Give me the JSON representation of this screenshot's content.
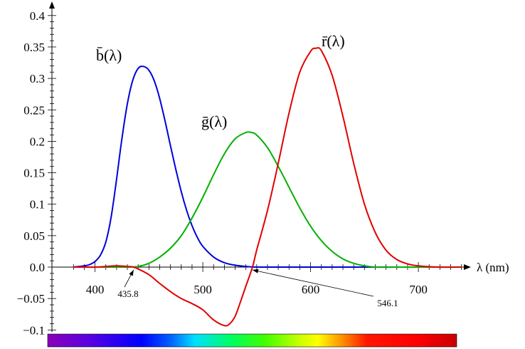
{
  "chart_data": {
    "type": "line",
    "title": "",
    "xlabel": "λ (nm)",
    "ylabel": "",
    "xlim": [
      360,
      750
    ],
    "ylim": [
      -0.1,
      0.4
    ],
    "grid": false,
    "x_ticks": [
      400,
      500,
      600,
      700
    ],
    "y_ticks": [
      0.4,
      0.35,
      0.3,
      0.25,
      0.2,
      0.15,
      0.1,
      0.05,
      0.0,
      -0.05,
      -0.1
    ],
    "x_tick_labels": [
      "400",
      "500",
      "600",
      "700"
    ],
    "y_tick_labels": [
      "0.4",
      "0.35",
      "0.3",
      "0.25",
      "0.2",
      "0.15",
      "0.1",
      "0.05",
      "0.0",
      "−0.05",
      "−0.1"
    ],
    "annotations": [
      {
        "text": "435.8",
        "x": 435.8,
        "y": 0
      },
      {
        "text": "546.1",
        "x": 546.1,
        "y": 0
      }
    ],
    "series": [
      {
        "name": "b̄(λ)",
        "color": "#0000dd",
        "x": [
          380,
          390,
          395,
          400,
          405,
          410,
          415,
          420,
          425,
          430,
          435,
          440,
          445,
          450,
          455,
          460,
          465,
          470,
          475,
          480,
          485,
          490,
          495,
          500,
          510,
          520,
          530,
          540,
          550,
          560,
          580,
          600,
          650,
          700,
          740
        ],
        "values": [
          0.0,
          0.002,
          0.004,
          0.009,
          0.019,
          0.04,
          0.08,
          0.14,
          0.205,
          0.26,
          0.297,
          0.316,
          0.319,
          0.313,
          0.296,
          0.268,
          0.232,
          0.193,
          0.155,
          0.12,
          0.09,
          0.066,
          0.047,
          0.033,
          0.016,
          0.007,
          0.003,
          0.001,
          0.0,
          0.0,
          0.0,
          0.0,
          0.0,
          0.0,
          0.0
        ]
      },
      {
        "name": "ḡ(λ)",
        "color": "#00b000",
        "x": [
          380,
          420,
          430,
          440,
          450,
          460,
          470,
          480,
          490,
          500,
          510,
          520,
          530,
          540,
          545,
          550,
          560,
          570,
          580,
          590,
          600,
          610,
          620,
          630,
          640,
          650,
          660,
          680,
          700,
          740
        ],
        "values": [
          0.0,
          0.0,
          0.0,
          0.001,
          0.006,
          0.016,
          0.03,
          0.05,
          0.078,
          0.111,
          0.147,
          0.18,
          0.204,
          0.214,
          0.214,
          0.21,
          0.19,
          0.16,
          0.127,
          0.094,
          0.065,
          0.042,
          0.025,
          0.013,
          0.006,
          0.002,
          0.0,
          0.0,
          0.0,
          0.0
        ]
      },
      {
        "name": "r̄(λ)",
        "color": "#e00000",
        "x": [
          380,
          400,
          410,
          420,
          430,
          435.8,
          440,
          450,
          460,
          470,
          480,
          490,
          500,
          510,
          520,
          525,
          530,
          535,
          540,
          546.1,
          550,
          560,
          570,
          580,
          590,
          600,
          605,
          610,
          620,
          630,
          640,
          650,
          660,
          670,
          680,
          690,
          700,
          720,
          740
        ],
        "values": [
          0.0,
          0.0,
          0.001,
          0.002,
          0.001,
          0.0,
          -0.003,
          -0.012,
          -0.026,
          -0.039,
          -0.05,
          -0.058,
          -0.068,
          -0.084,
          -0.093,
          -0.09,
          -0.078,
          -0.055,
          -0.03,
          0.0,
          0.027,
          0.09,
          0.165,
          0.245,
          0.31,
          0.343,
          0.348,
          0.344,
          0.305,
          0.24,
          0.165,
          0.1,
          0.055,
          0.027,
          0.012,
          0.005,
          0.002,
          0.0,
          0.0
        ]
      }
    ]
  }
}
